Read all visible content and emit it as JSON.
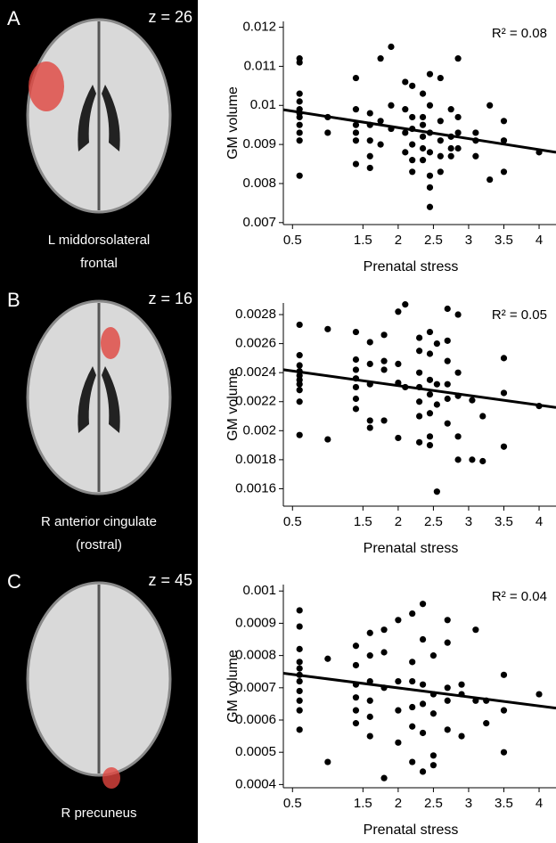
{
  "chart_data": [
    {
      "type": "scatter",
      "panel_label": "A",
      "slice_label": "z = 26",
      "region_label": [
        "L middorsolateral",
        "frontal"
      ],
      "annotation": "R² = 0.08",
      "xlabel": "Prenatal stress",
      "ylabel": "GM volume",
      "color": "#000000",
      "xlim": [
        0.37,
        4.24
      ],
      "ylim": [
        0.00695,
        0.01215
      ],
      "xticks": [
        0.5,
        1.5,
        2,
        2.5,
        3,
        3.5,
        4
      ],
      "yticks": [
        0.007,
        0.008,
        0.009,
        0.01,
        0.011,
        0.012
      ],
      "x": [
        0.6,
        0.6,
        0.6,
        0.6,
        0.6,
        0.6,
        0.6,
        0.6,
        0.6,
        0.6,
        0.6,
        1.0,
        1.0,
        1.4,
        1.4,
        1.4,
        1.4,
        1.4,
        1.4,
        1.6,
        1.6,
        1.6,
        1.6,
        1.6,
        1.75,
        1.75,
        1.75,
        1.9,
        1.9,
        1.9,
        2.1,
        2.1,
        2.1,
        2.1,
        2.2,
        2.2,
        2.2,
        2.2,
        2.2,
        2.2,
        2.35,
        2.35,
        2.35,
        2.35,
        2.35,
        2.35,
        2.45,
        2.45,
        2.45,
        2.45,
        2.45,
        2.45,
        2.45,
        2.6,
        2.6,
        2.6,
        2.6,
        2.6,
        2.75,
        2.75,
        2.75,
        2.75,
        2.85,
        2.85,
        2.85,
        2.85,
        3.1,
        3.1,
        3.1,
        3.3,
        3.3,
        3.5,
        3.5,
        3.5,
        4.0
      ],
      "values": [
        0.0112,
        0.0111,
        0.0103,
        0.0101,
        0.0099,
        0.0098,
        0.0097,
        0.0095,
        0.0093,
        0.0091,
        0.0082,
        0.0093,
        0.0097,
        0.0107,
        0.0099,
        0.0095,
        0.0093,
        0.0091,
        0.0085,
        0.0098,
        0.0095,
        0.0091,
        0.0087,
        0.0084,
        0.0112,
        0.0096,
        0.009,
        0.0115,
        0.01,
        0.0094,
        0.0106,
        0.0099,
        0.0093,
        0.0088,
        0.0105,
        0.0097,
        0.0094,
        0.009,
        0.0086,
        0.0083,
        0.0103,
        0.0097,
        0.0095,
        0.0092,
        0.0089,
        0.0086,
        0.0108,
        0.01,
        0.0093,
        0.0088,
        0.0082,
        0.0079,
        0.0074,
        0.0107,
        0.0096,
        0.0091,
        0.0087,
        0.0083,
        0.0099,
        0.0092,
        0.0089,
        0.0087,
        0.0112,
        0.0097,
        0.0093,
        0.0089,
        0.0093,
        0.0091,
        0.0087,
        0.01,
        0.0081,
        0.0096,
        0.0091,
        0.0083,
        0.0088
      ],
      "fit_line": {
        "x": [
          0.37,
          4.24
        ],
        "values": [
          0.00989,
          0.0088
        ]
      }
    },
    {
      "type": "scatter",
      "panel_label": "B",
      "slice_label": "z = 16",
      "region_label": [
        "R anterior cingulate",
        "(rostral)"
      ],
      "annotation": "R² = 0.05",
      "xlabel": "Prenatal stress",
      "ylabel": "GM volume",
      "color": "#000000",
      "xlim": [
        0.37,
        4.24
      ],
      "ylim": [
        0.00148,
        0.00288
      ],
      "xticks": [
        0.5,
        1.5,
        2,
        2.5,
        3,
        3.5,
        4
      ],
      "yticks": [
        0.0016,
        0.0018,
        0.002,
        0.0022,
        0.0024,
        0.0026,
        0.0028
      ],
      "x": [
        0.6,
        0.6,
        0.6,
        0.6,
        0.6,
        0.6,
        0.6,
        0.6,
        0.6,
        0.6,
        1.0,
        1.0,
        1.4,
        1.4,
        1.4,
        1.4,
        1.4,
        1.4,
        1.4,
        1.6,
        1.6,
        1.6,
        1.6,
        1.6,
        1.8,
        1.8,
        1.8,
        1.8,
        2.0,
        2.0,
        2.0,
        2.0,
        2.1,
        2.1,
        2.3,
        2.3,
        2.3,
        2.3,
        2.3,
        2.3,
        2.3,
        2.45,
        2.45,
        2.45,
        2.45,
        2.45,
        2.45,
        2.45,
        2.55,
        2.55,
        2.55,
        2.55,
        2.7,
        2.7,
        2.7,
        2.7,
        2.7,
        2.7,
        2.85,
        2.85,
        2.85,
        2.85,
        2.85,
        3.05,
        3.05,
        3.2,
        3.2,
        3.5,
        3.5,
        3.5,
        4.0
      ],
      "values": [
        0.00273,
        0.00252,
        0.00245,
        0.00241,
        0.00238,
        0.00235,
        0.00232,
        0.00228,
        0.0022,
        0.00197,
        0.0027,
        0.00194,
        0.00268,
        0.00249,
        0.00242,
        0.00236,
        0.0023,
        0.00222,
        0.00215,
        0.00261,
        0.00246,
        0.00232,
        0.00207,
        0.00202,
        0.00266,
        0.00248,
        0.00242,
        0.00207,
        0.00282,
        0.00246,
        0.00233,
        0.00195,
        0.00287,
        0.0023,
        0.00264,
        0.00255,
        0.0024,
        0.0023,
        0.0022,
        0.0021,
        0.00192,
        0.00268,
        0.00253,
        0.00235,
        0.00225,
        0.00212,
        0.00196,
        0.0019,
        0.0026,
        0.00232,
        0.00218,
        0.00158,
        0.00284,
        0.00262,
        0.00248,
        0.00232,
        0.00222,
        0.00205,
        0.0028,
        0.0024,
        0.00224,
        0.00196,
        0.0018,
        0.0018,
        0.00221,
        0.00179,
        0.0021,
        0.0025,
        0.00226,
        0.00189,
        0.00217
      ],
      "fit_line": {
        "x": [
          0.37,
          4.24
        ],
        "values": [
          0.00242,
          0.00216
        ]
      }
    },
    {
      "type": "scatter",
      "panel_label": "C",
      "slice_label": "z = 45",
      "region_label": [
        "R precuneus"
      ],
      "annotation": "R² = 0.04",
      "xlabel": "Prenatal stress",
      "ylabel": "GM volume",
      "color": "#000000",
      "xlim": [
        0.37,
        4.24
      ],
      "ylim": [
        0.00039,
        0.00102
      ],
      "xticks": [
        0.5,
        1.5,
        2,
        2.5,
        3,
        3.5,
        4
      ],
      "yticks": [
        0.0004,
        0.0005,
        0.0006,
        0.0007,
        0.0008,
        0.0009,
        0.001
      ],
      "x": [
        0.6,
        0.6,
        0.6,
        0.6,
        0.6,
        0.6,
        0.6,
        0.6,
        0.6,
        0.6,
        0.6,
        1.0,
        1.0,
        1.4,
        1.4,
        1.4,
        1.4,
        1.4,
        1.4,
        1.6,
        1.6,
        1.6,
        1.6,
        1.6,
        1.6,
        1.8,
        1.8,
        1.8,
        1.8,
        2.0,
        2.0,
        2.0,
        2.0,
        2.2,
        2.2,
        2.2,
        2.2,
        2.2,
        2.2,
        2.35,
        2.35,
        2.35,
        2.35,
        2.35,
        2.35,
        2.5,
        2.5,
        2.5,
        2.5,
        2.5,
        2.7,
        2.7,
        2.7,
        2.7,
        2.7,
        2.9,
        2.9,
        2.9,
        3.1,
        3.1,
        3.25,
        3.25,
        3.5,
        3.5,
        3.5,
        4.0
      ],
      "values": [
        0.00094,
        0.00089,
        0.00082,
        0.00078,
        0.00076,
        0.00074,
        0.00072,
        0.00069,
        0.00066,
        0.00063,
        0.00057,
        0.00079,
        0.00047,
        0.00083,
        0.00077,
        0.00071,
        0.00067,
        0.00063,
        0.00059,
        0.00087,
        0.0008,
        0.00072,
        0.00066,
        0.00061,
        0.00055,
        0.00088,
        0.00081,
        0.0007,
        0.00042,
        0.00091,
        0.00072,
        0.00063,
        0.00053,
        0.00093,
        0.00078,
        0.00072,
        0.00064,
        0.00058,
        0.00047,
        0.00096,
        0.00085,
        0.00071,
        0.00065,
        0.00056,
        0.00044,
        0.0008,
        0.00068,
        0.00062,
        0.00049,
        0.00046,
        0.00091,
        0.00084,
        0.0007,
        0.00066,
        0.00057,
        0.00071,
        0.00068,
        0.00055,
        0.00088,
        0.00066,
        0.00066,
        0.00059,
        0.00074,
        0.00063,
        0.0005,
        0.00068
      ],
      "fit_line": {
        "x": [
          0.37,
          4.24
        ],
        "values": [
          0.000745,
          0.000637
        ]
      }
    }
  ]
}
